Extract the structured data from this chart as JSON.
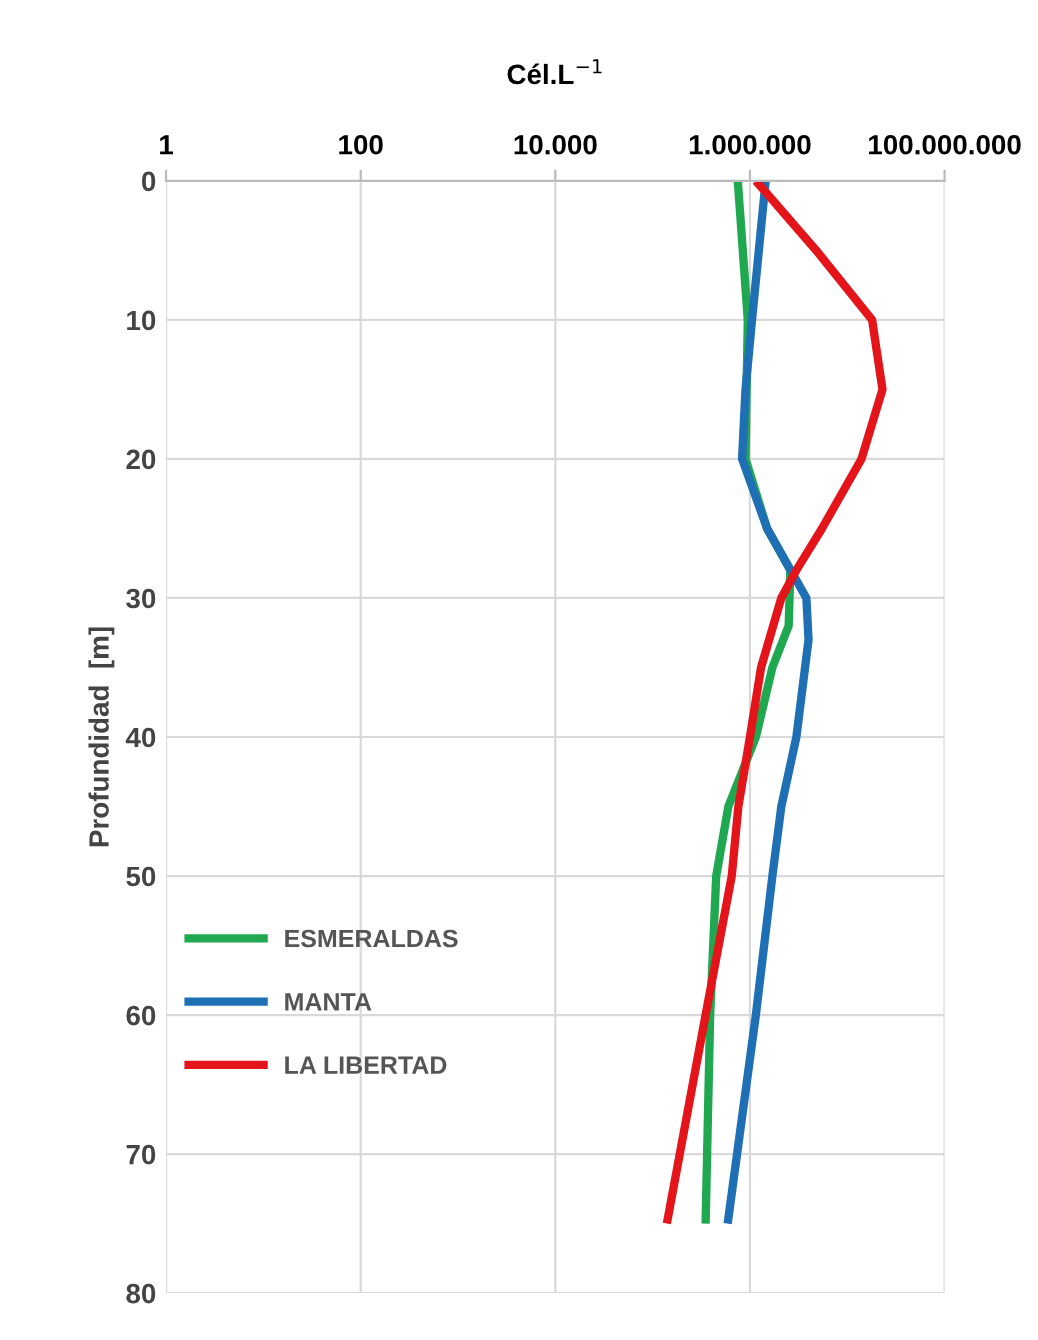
{
  "chart_data": {
    "type": "line",
    "xlabel": "Cél.L$^{−1}$",
    "ylabel": "Profundidad  [m]",
    "log": "x",
    "xlim": [
      1,
      100000000
    ],
    "ylim": [
      80,
      0
    ],
    "xticks": [
      1,
      {
        "value": 100,
        "label": "100"
      },
      {
        "value": 10000,
        "label": "10.000"
      },
      {
        "value": 1000000,
        "label": "1.000.000"
      },
      {
        "value": 100000000,
        "label": "100.000.000"
      }
    ],
    "yticks": [
      0,
      10,
      20,
      30,
      40,
      50,
      60,
      70,
      80
    ],
    "grid": true,
    "legend": "center left",
    "line_style": "solid",
    "marker": "none",
    "series": [
      {
        "name": "ESMERALDAS",
        "color": "#1fa84f",
        "x": [
          750000,
          950000,
          900000,
          1500000,
          2600000,
          2500000,
          1700000,
          1150000,
          600000,
          450000,
          390000,
          350000
        ],
        "values": [
          0,
          10,
          20,
          25,
          28,
          32,
          35,
          40,
          45,
          50,
          60,
          75
        ]
      },
      {
        "name": "MANTA",
        "color": "#1f6fb5",
        "x": [
          1450000,
          1050000,
          900000,
          830000,
          1500000,
          3800000,
          4000000,
          3000000,
          2100000,
          1700000,
          1150000,
          590000
        ],
        "values": [
          0,
          10,
          15,
          20,
          25,
          30,
          33,
          40,
          45,
          50,
          60,
          75
        ]
      },
      {
        "name": "LA LIBERTAD",
        "color": "#e3151a",
        "x": [
          1150000,
          4800000,
          18000000,
          23000000,
          14000000,
          5500000,
          3000000,
          2100000,
          1300000,
          1000000,
          760000,
          650000,
          350000,
          140000
        ],
        "values": [
          0,
          5,
          10,
          15,
          20,
          25,
          28,
          30,
          35,
          40,
          45,
          50,
          60,
          75
        ]
      }
    ]
  }
}
